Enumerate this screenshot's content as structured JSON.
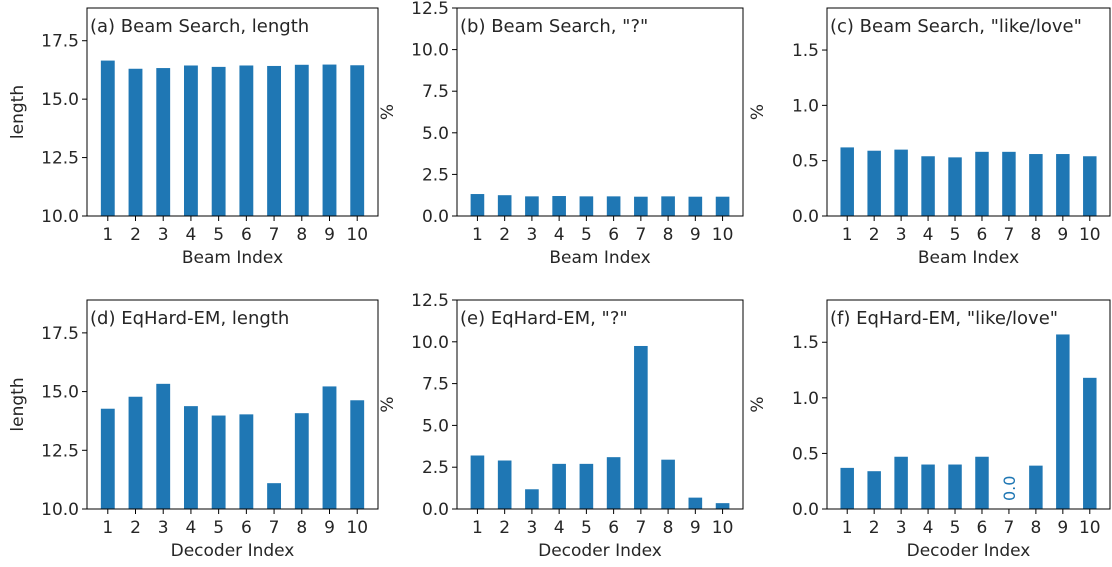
{
  "colors": {
    "bar": "#1f77b4",
    "zero_label": "#1f77b4"
  },
  "chart_data": [
    {
      "type": "bar",
      "title": "(a) Beam Search, length",
      "xlabel": "Beam Index",
      "ylabel": "length",
      "categories": [
        "1",
        "2",
        "3",
        "4",
        "5",
        "6",
        "7",
        "8",
        "9",
        "10"
      ],
      "values": [
        16.65,
        16.3,
        16.33,
        16.44,
        16.38,
        16.44,
        16.42,
        16.47,
        16.48,
        16.45
      ],
      "ylim": [
        10,
        18.9
      ],
      "yticks": [
        "10.0",
        "12.5",
        "15.0",
        "17.5"
      ],
      "ytick_values": [
        10,
        12.5,
        15,
        17.5
      ]
    },
    {
      "type": "bar",
      "title": "(b) Beam Search, \"?\"",
      "xlabel": "Beam Index",
      "ylabel": "%",
      "categories": [
        "1",
        "2",
        "3",
        "4",
        "5",
        "6",
        "7",
        "8",
        "9",
        "10"
      ],
      "values": [
        1.32,
        1.25,
        1.18,
        1.2,
        1.18,
        1.18,
        1.16,
        1.18,
        1.16,
        1.16
      ],
      "ylim": [
        0,
        12.5
      ],
      "yticks": [
        "0.0",
        "2.5",
        "5.0",
        "7.5",
        "10.0",
        "12.5"
      ],
      "ytick_values": [
        0,
        2.5,
        5,
        7.5,
        10,
        12.5
      ]
    },
    {
      "type": "bar",
      "title": "(c) Beam Search, \"like/love\"",
      "xlabel": "Beam Index",
      "ylabel": "%",
      "categories": [
        "1",
        "2",
        "3",
        "4",
        "5",
        "6",
        "7",
        "8",
        "9",
        "10"
      ],
      "values": [
        0.62,
        0.59,
        0.6,
        0.54,
        0.53,
        0.58,
        0.58,
        0.56,
        0.56,
        0.54
      ],
      "ylim": [
        0,
        1.88
      ],
      "yticks": [
        "0.0",
        "0.5",
        "1.0",
        "1.5"
      ],
      "ytick_values": [
        0,
        0.5,
        1,
        1.5
      ]
    },
    {
      "type": "bar",
      "title": "(d) EqHard-EM, length",
      "xlabel": "Decoder Index",
      "ylabel": "length",
      "categories": [
        "1",
        "2",
        "3",
        "4",
        "5",
        "6",
        "7",
        "8",
        "9",
        "10"
      ],
      "values": [
        14.27,
        14.78,
        15.33,
        14.38,
        13.98,
        14.03,
        11.1,
        14.08,
        15.22,
        14.63
      ],
      "ylim": [
        10,
        18.9
      ],
      "yticks": [
        "10.0",
        "12.5",
        "15.0",
        "17.5"
      ],
      "ytick_values": [
        10,
        12.5,
        15,
        17.5
      ]
    },
    {
      "type": "bar",
      "title": "(e) EqHard-EM, \"?\"",
      "xlabel": "Decoder Index",
      "ylabel": "%",
      "categories": [
        "1",
        "2",
        "3",
        "4",
        "5",
        "6",
        "7",
        "8",
        "9",
        "10"
      ],
      "values": [
        3.2,
        2.9,
        1.18,
        2.7,
        2.7,
        3.1,
        9.75,
        2.95,
        0.68,
        0.35
      ],
      "ylim": [
        0,
        12.5
      ],
      "yticks": [
        "0.0",
        "2.5",
        "5.0",
        "7.5",
        "10.0",
        "12.5"
      ],
      "ytick_values": [
        0,
        2.5,
        5,
        7.5,
        10,
        12.5
      ]
    },
    {
      "type": "bar",
      "title": "(f) EqHard-EM, \"like/love\"",
      "xlabel": "Decoder Index",
      "ylabel": "%",
      "categories": [
        "1",
        "2",
        "3",
        "4",
        "5",
        "6",
        "7",
        "8",
        "9",
        "10"
      ],
      "values": [
        0.37,
        0.34,
        0.47,
        0.4,
        0.4,
        0.47,
        0.0,
        0.39,
        1.57,
        1.18
      ],
      "ylim": [
        0,
        1.88
      ],
      "yticks": [
        "0.0",
        "0.5",
        "1.0",
        "1.5"
      ],
      "ytick_values": [
        0,
        0.5,
        1,
        1.5
      ],
      "annotations": [
        {
          "category": "7",
          "text": "0.0",
          "rotation": "vertical"
        }
      ]
    }
  ]
}
